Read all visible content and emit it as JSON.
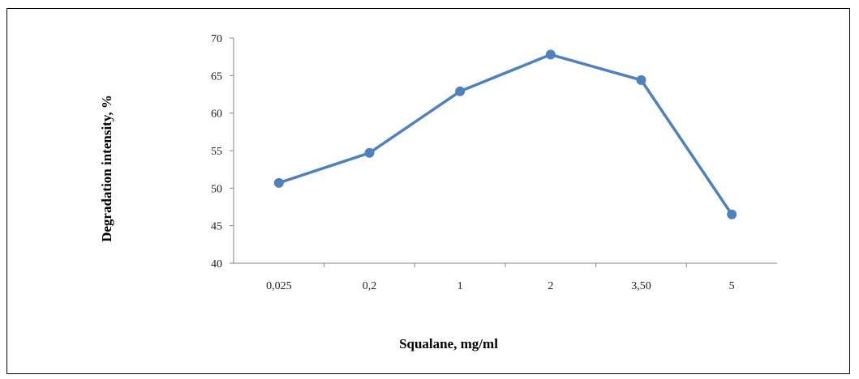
{
  "chart_data": {
    "type": "line",
    "title": "",
    "xlabel": "Squalane, mg/ml",
    "ylabel": "Degradation intensity, %",
    "categories": [
      "0,025",
      "0,2",
      "1",
      "2",
      "3,50",
      "5"
    ],
    "series": [
      {
        "values": [
          50.7,
          54.7,
          62.9,
          67.8,
          64.4,
          46.5
        ]
      }
    ],
    "ylim": [
      40,
      70
    ],
    "yticks": [
      "40",
      "45",
      "50",
      "55",
      "60",
      "65",
      "70"
    ],
    "grid": false,
    "legend": "none",
    "line_color": "#4F81BD",
    "axis_color": "#868686"
  }
}
